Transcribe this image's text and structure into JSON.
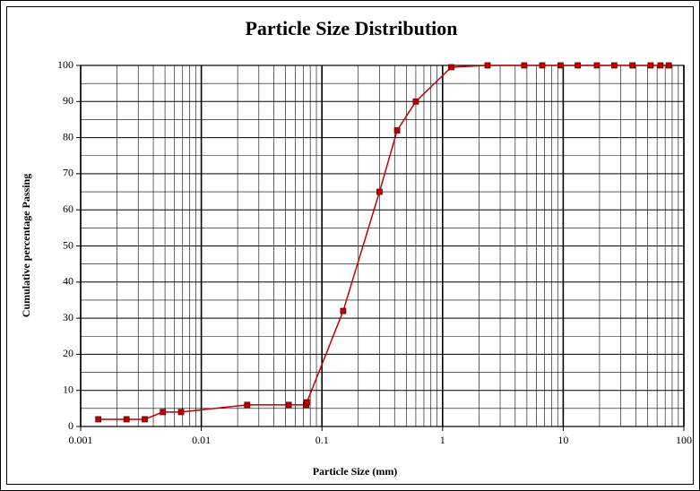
{
  "chart_data": {
    "type": "line",
    "title": "Particle Size Distribution",
    "x_label": "Particle Size (mm)",
    "y_label": "Cumulative percentage Passing",
    "x_scale": "log",
    "xlim": [
      0.001,
      100
    ],
    "xticks": [
      0.001,
      0.01,
      0.1,
      1,
      10,
      100
    ],
    "ylim": [
      0,
      100
    ],
    "yticks": [
      0,
      10,
      20,
      30,
      40,
      50,
      60,
      70,
      80,
      90,
      100
    ],
    "grid": true,
    "x_minor_grid": true,
    "y_minor_grid": true,
    "series": [
      {
        "color": "#c00000",
        "x": [
          0.0014,
          0.0024,
          0.0034,
          0.0048,
          0.0068,
          0.024,
          0.053,
          0.074,
          0.075,
          0.15,
          0.3,
          0.42,
          0.6,
          1.18,
          2.36,
          4.75,
          6.7,
          9.5,
          13.2,
          19,
          26.5,
          37.5,
          53,
          64,
          75
        ],
        "values": [
          2,
          2,
          2,
          4,
          4,
          6,
          6,
          6,
          6.7,
          32,
          65,
          82,
          90,
          99.5,
          100,
          100,
          100,
          100,
          100,
          100,
          100,
          100,
          100,
          100,
          100
        ]
      }
    ]
  }
}
